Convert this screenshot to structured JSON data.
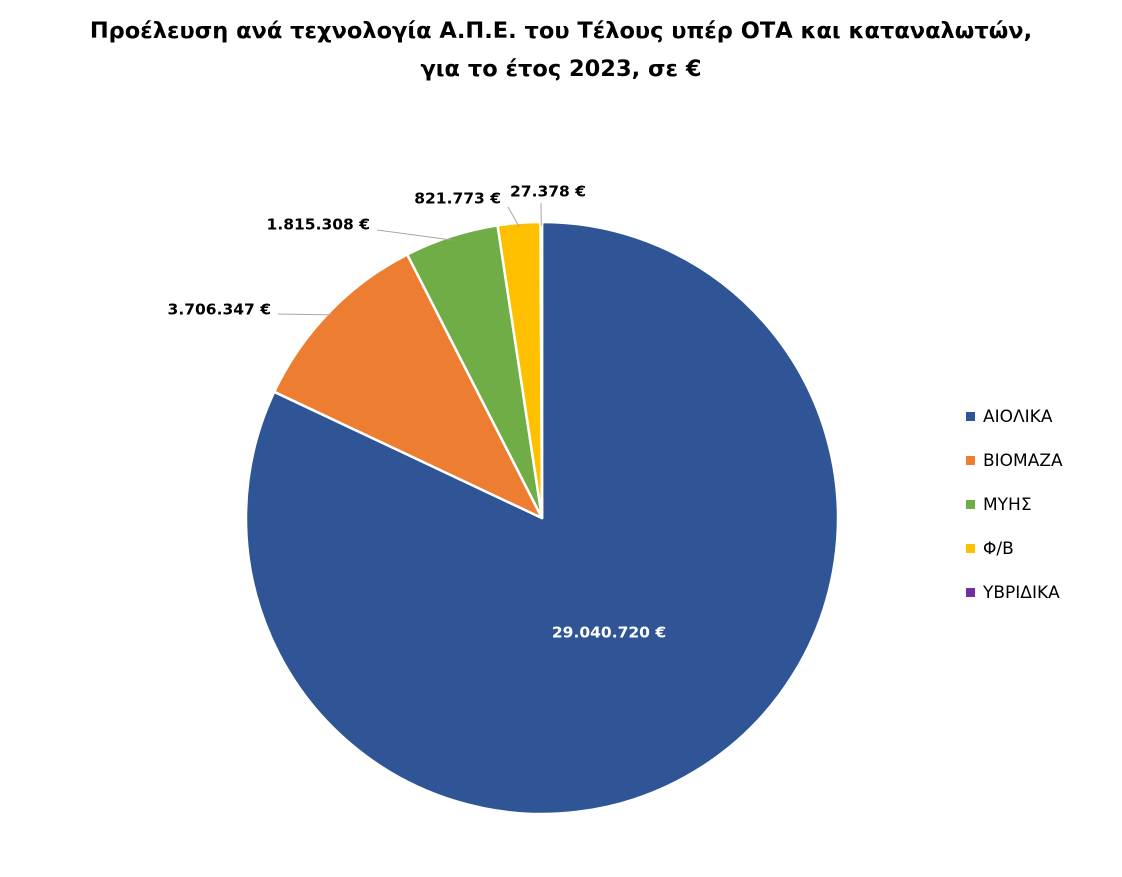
{
  "chart_data": {
    "type": "pie",
    "title": "Προέλευση ανά τεχνολογία Α.Π.Ε. του Τέλους υπέρ ΟΤΑ και καταναλωτών, για το έτος 2023, σε €",
    "title_lines": [
      "Προέλευση ανά τεχνολογία Α.Π.Ε. του Τέλους υπέρ ΟΤΑ και καταναλωτών,",
      "για το έτος 2023, σε €"
    ],
    "start_direction": "12 o'clock, clockwise",
    "legend_position": "right",
    "slices": [
      {
        "name": "ΑΙΟΛΙΚΑ",
        "value": 29040720,
        "label": "29.040.720 €",
        "color": "#2F5597",
        "label_color": "#FFFFFF"
      },
      {
        "name": "ΒΙΟΜΑΖΑ",
        "value": 3706347,
        "label": "3.706.347 €",
        "color": "#ED7D31",
        "label_color": "#000000"
      },
      {
        "name": "ΜΥΗΣ",
        "value": 1815308,
        "label": "1.815.308 €",
        "color": "#70AD47",
        "label_color": "#000000"
      },
      {
        "name": "Φ/Β",
        "value": 821773,
        "label": "821.773 €",
        "color": "#FFC000",
        "label_color": "#000000"
      },
      {
        "name": "ΥΒΡΙΔΙΚΑ",
        "value": 27378,
        "label": "27.378 €",
        "color": "#7030A0",
        "label_color": "#000000"
      }
    ]
  }
}
